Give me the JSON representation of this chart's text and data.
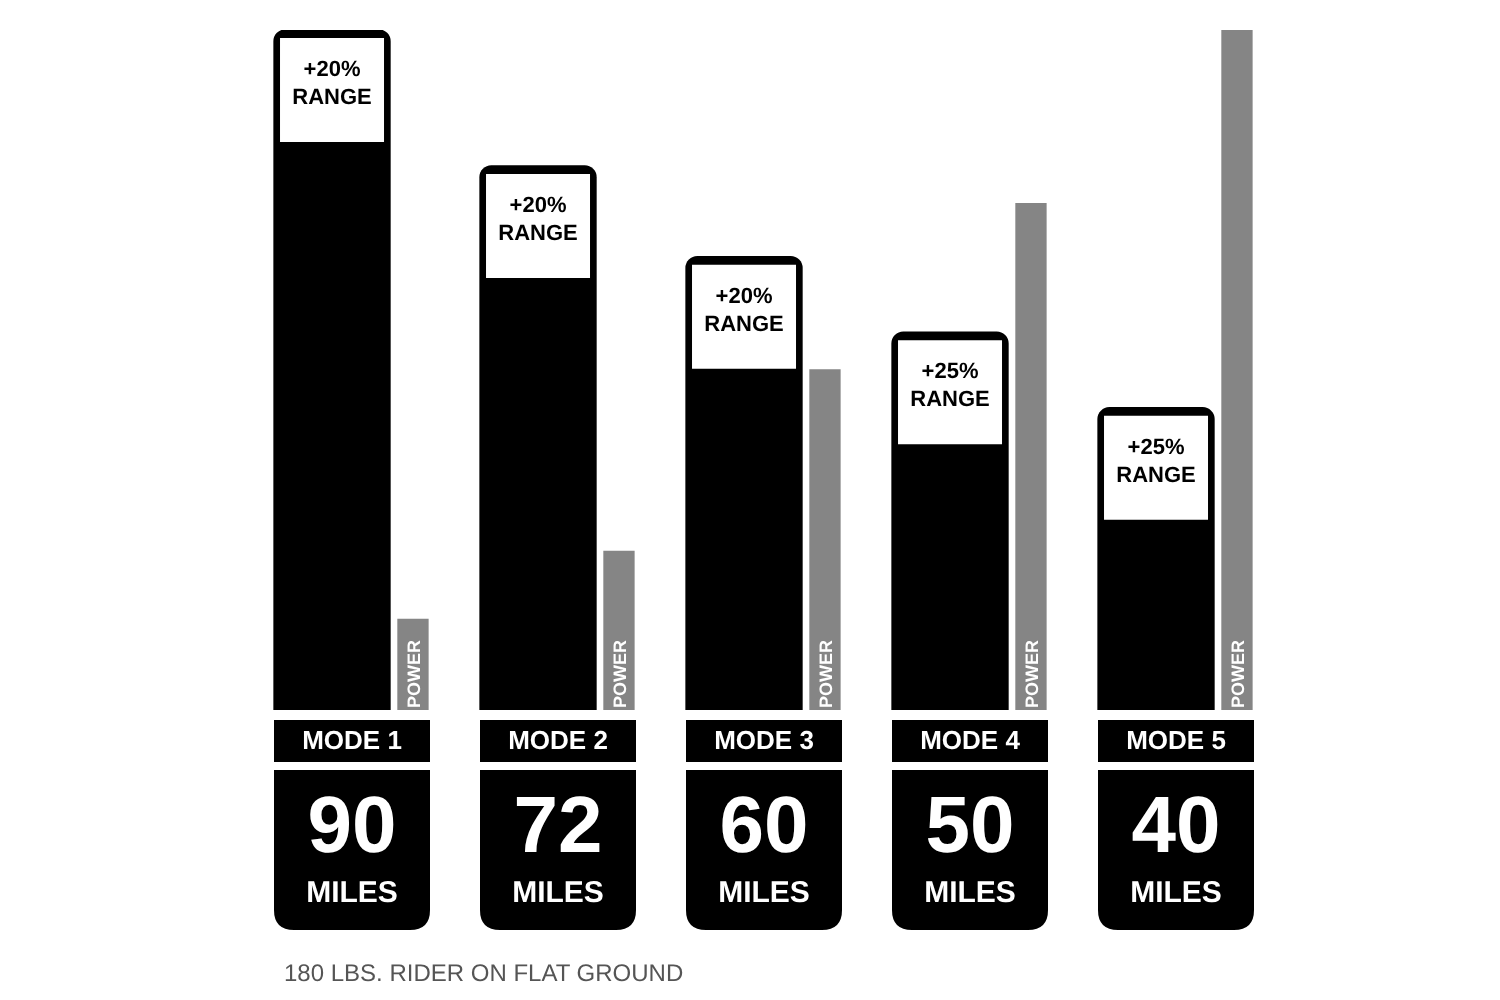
{
  "chart_data": {
    "type": "bar",
    "categories": [
      "MODE 1",
      "MODE 2",
      "MODE 3",
      "MODE 4",
      "MODE 5"
    ],
    "series": [
      {
        "color": "#000000",
        "values": [
          90,
          72,
          60,
          50,
          40
        ],
        "value_labels": [
          "90 MILES",
          "72 MILES",
          "60 MILES",
          "50 MILES",
          "40 MILES"
        ]
      },
      {
        "name": "POWER",
        "color": "#858585",
        "values": [
          12,
          21,
          45,
          67,
          90
        ]
      }
    ],
    "ylim": [
      0,
      90
    ],
    "tick_labels": "x",
    "grid": false,
    "legend": false,
    "annotations": [
      {
        "text": "+20% RANGE",
        "x": "MODE 1",
        "y": 90
      },
      {
        "text": "+20% RANGE",
        "x": "MODE 2",
        "y": 72
      },
      {
        "text": "+20% RANGE",
        "x": "MODE 3",
        "y": 60
      },
      {
        "text": "+25% RANGE",
        "x": "MODE 4",
        "y": 50
      },
      {
        "text": "+25% RANGE",
        "x": "MODE 5",
        "y": 40
      },
      "180 LBS. RIDER ON FLAT GROUND"
    ]
  }
}
